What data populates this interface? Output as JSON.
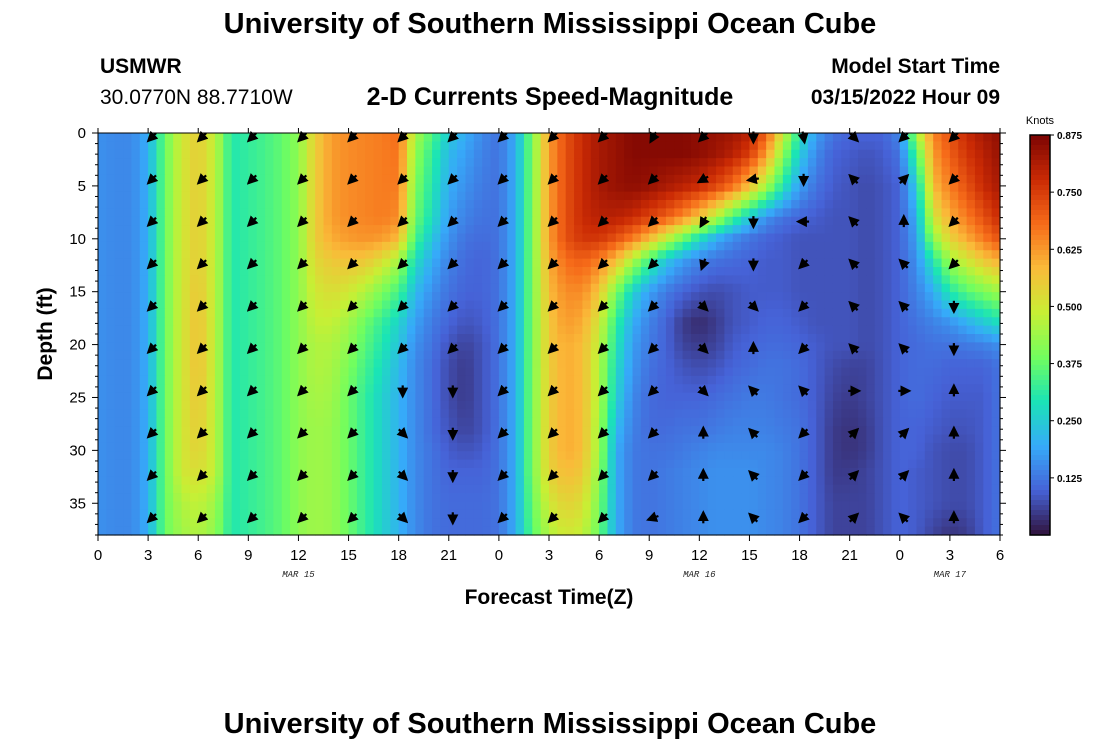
{
  "header": {
    "title": "University of Southern Mississippi Ocean Cube",
    "station": "USMWR",
    "coords": "30.0770N  88.7710W",
    "subtitle": "2-D Currents Speed-Magnitude",
    "model_label": "Model Start Time",
    "model_time": "03/15/2022 Hour 09"
  },
  "footer": {
    "title": "University of Southern Mississippi Ocean Cube"
  },
  "colors": {
    "scale": [
      "#30123b",
      "#4662d7",
      "#36aaf9",
      "#1ae4b6",
      "#72fe5e",
      "#c8ef34",
      "#faba39",
      "#f66b19",
      "#ca2a04",
      "#7a0403"
    ]
  },
  "chart_data": {
    "type": "heatmap",
    "title": "2-D Currents Speed-Magnitude",
    "xlabel": "Forecast Time(Z)",
    "ylabel": "Depth (ft)",
    "x_ticks": [
      "0",
      "3",
      "6",
      "9",
      "12",
      "15",
      "18",
      "21",
      "0",
      "3",
      "6",
      "9",
      "12",
      "15",
      "18",
      "21",
      "0",
      "3",
      "6"
    ],
    "x_range_hours": [
      0,
      54
    ],
    "date_labels": [
      {
        "text": "MAR 15",
        "hour": 12
      },
      {
        "text": "MAR 16",
        "hour": 36
      },
      {
        "text": "MAR 17",
        "hour": 51
      }
    ],
    "y_ticks": [
      0,
      5,
      10,
      15,
      20,
      25,
      30,
      35
    ],
    "ylim": [
      0,
      38
    ],
    "y_inverted": true,
    "colorbar": {
      "title": "Knots",
      "ticks": [
        "0.875",
        "0.750",
        "0.625",
        "0.500",
        "0.375",
        "0.250",
        "0.125"
      ],
      "range": [
        0,
        0.875
      ]
    },
    "speed_profile": {
      "hours": [
        0,
        1,
        2,
        3,
        4,
        5,
        6,
        7,
        8,
        9,
        10,
        11,
        12,
        13,
        14,
        15,
        16,
        17,
        18,
        19,
        20,
        21,
        22,
        23,
        24,
        25,
        26,
        27,
        28,
        29,
        30,
        31,
        32,
        33,
        34,
        35,
        36,
        37,
        38,
        39,
        40,
        41,
        42,
        43,
        44,
        45,
        46,
        47,
        48,
        49,
        50,
        51,
        52,
        53,
        54
      ],
      "depths_ft": [
        0,
        2,
        5,
        8,
        10,
        12,
        15,
        18,
        20,
        22,
        25,
        28,
        30,
        32,
        35,
        38
      ],
      "knots": [
        [
          0.16,
          0.15,
          0.15,
          0.2,
          0.38,
          0.5,
          0.55,
          0.48,
          0.3,
          0.32,
          0.34,
          0.37,
          0.42,
          0.55,
          0.62,
          0.64,
          0.65,
          0.66,
          0.68,
          0.45,
          0.35,
          0.25,
          0.2,
          0.15,
          0.12,
          0.2,
          0.4,
          0.62,
          0.72,
          0.78,
          0.82,
          0.84,
          0.86,
          0.86,
          0.86,
          0.86,
          0.85,
          0.84,
          0.83,
          0.8,
          0.7,
          0.5,
          0.3,
          0.18,
          0.12,
          0.1,
          0.1,
          0.1,
          0.15,
          0.45,
          0.65,
          0.72,
          0.78,
          0.82,
          0.85
        ],
        [
          0.16,
          0.15,
          0.15,
          0.2,
          0.38,
          0.5,
          0.55,
          0.48,
          0.3,
          0.32,
          0.34,
          0.37,
          0.42,
          0.55,
          0.62,
          0.64,
          0.65,
          0.66,
          0.67,
          0.42,
          0.32,
          0.22,
          0.18,
          0.14,
          0.12,
          0.2,
          0.4,
          0.62,
          0.72,
          0.78,
          0.82,
          0.84,
          0.86,
          0.86,
          0.86,
          0.86,
          0.85,
          0.83,
          0.8,
          0.75,
          0.62,
          0.42,
          0.25,
          0.15,
          0.1,
          0.09,
          0.08,
          0.09,
          0.12,
          0.35,
          0.62,
          0.7,
          0.76,
          0.8,
          0.84
        ],
        [
          0.16,
          0.15,
          0.15,
          0.2,
          0.38,
          0.5,
          0.55,
          0.48,
          0.3,
          0.32,
          0.34,
          0.37,
          0.42,
          0.55,
          0.62,
          0.64,
          0.65,
          0.66,
          0.66,
          0.4,
          0.3,
          0.2,
          0.16,
          0.13,
          0.12,
          0.2,
          0.4,
          0.62,
          0.72,
          0.78,
          0.82,
          0.84,
          0.85,
          0.84,
          0.82,
          0.8,
          0.78,
          0.74,
          0.68,
          0.58,
          0.45,
          0.3,
          0.18,
          0.12,
          0.09,
          0.08,
          0.07,
          0.08,
          0.1,
          0.25,
          0.58,
          0.66,
          0.72,
          0.78,
          0.82
        ],
        [
          0.16,
          0.15,
          0.15,
          0.2,
          0.38,
          0.5,
          0.55,
          0.48,
          0.3,
          0.32,
          0.34,
          0.37,
          0.42,
          0.55,
          0.62,
          0.64,
          0.65,
          0.66,
          0.64,
          0.38,
          0.28,
          0.18,
          0.14,
          0.12,
          0.12,
          0.2,
          0.4,
          0.62,
          0.72,
          0.78,
          0.8,
          0.8,
          0.78,
          0.74,
          0.7,
          0.64,
          0.56,
          0.46,
          0.34,
          0.24,
          0.16,
          0.12,
          0.1,
          0.09,
          0.08,
          0.08,
          0.07,
          0.08,
          0.1,
          0.2,
          0.5,
          0.6,
          0.66,
          0.72,
          0.78
        ],
        [
          0.16,
          0.15,
          0.15,
          0.2,
          0.38,
          0.5,
          0.55,
          0.48,
          0.3,
          0.32,
          0.34,
          0.37,
          0.42,
          0.55,
          0.6,
          0.62,
          0.63,
          0.62,
          0.58,
          0.34,
          0.24,
          0.16,
          0.12,
          0.11,
          0.12,
          0.2,
          0.4,
          0.62,
          0.72,
          0.76,
          0.76,
          0.72,
          0.66,
          0.58,
          0.48,
          0.38,
          0.28,
          0.2,
          0.15,
          0.12,
          0.1,
          0.09,
          0.08,
          0.08,
          0.08,
          0.08,
          0.07,
          0.08,
          0.1,
          0.18,
          0.42,
          0.54,
          0.6,
          0.66,
          0.72
        ],
        [
          0.16,
          0.15,
          0.15,
          0.2,
          0.38,
          0.5,
          0.55,
          0.48,
          0.3,
          0.32,
          0.34,
          0.37,
          0.42,
          0.53,
          0.56,
          0.57,
          0.56,
          0.52,
          0.45,
          0.28,
          0.2,
          0.14,
          0.11,
          0.1,
          0.12,
          0.2,
          0.4,
          0.6,
          0.68,
          0.7,
          0.66,
          0.58,
          0.46,
          0.34,
          0.24,
          0.18,
          0.14,
          0.12,
          0.11,
          0.1,
          0.09,
          0.09,
          0.08,
          0.08,
          0.08,
          0.08,
          0.07,
          0.08,
          0.1,
          0.16,
          0.3,
          0.44,
          0.5,
          0.56,
          0.6
        ],
        [
          0.16,
          0.15,
          0.15,
          0.2,
          0.38,
          0.5,
          0.56,
          0.48,
          0.3,
          0.32,
          0.34,
          0.37,
          0.42,
          0.5,
          0.52,
          0.5,
          0.46,
          0.4,
          0.34,
          0.22,
          0.16,
          0.12,
          0.1,
          0.1,
          0.12,
          0.2,
          0.4,
          0.58,
          0.64,
          0.64,
          0.56,
          0.4,
          0.26,
          0.18,
          0.13,
          0.1,
          0.08,
          0.07,
          0.08,
          0.09,
          0.09,
          0.09,
          0.08,
          0.08,
          0.08,
          0.08,
          0.07,
          0.08,
          0.1,
          0.14,
          0.2,
          0.3,
          0.36,
          0.4,
          0.44
        ],
        [
          0.16,
          0.15,
          0.15,
          0.2,
          0.38,
          0.5,
          0.57,
          0.48,
          0.3,
          0.32,
          0.34,
          0.37,
          0.42,
          0.48,
          0.48,
          0.44,
          0.38,
          0.32,
          0.26,
          0.18,
          0.13,
          0.1,
          0.08,
          0.09,
          0.12,
          0.2,
          0.4,
          0.56,
          0.62,
          0.6,
          0.5,
          0.32,
          0.2,
          0.14,
          0.1,
          0.05,
          0.03,
          0.05,
          0.08,
          0.09,
          0.1,
          0.1,
          0.09,
          0.08,
          0.08,
          0.08,
          0.07,
          0.08,
          0.1,
          0.12,
          0.14,
          0.16,
          0.2,
          0.24,
          0.28
        ],
        [
          0.16,
          0.15,
          0.15,
          0.2,
          0.38,
          0.5,
          0.57,
          0.48,
          0.3,
          0.32,
          0.34,
          0.37,
          0.42,
          0.46,
          0.46,
          0.42,
          0.36,
          0.3,
          0.24,
          0.16,
          0.12,
          0.08,
          0.06,
          0.08,
          0.12,
          0.2,
          0.4,
          0.56,
          0.6,
          0.58,
          0.48,
          0.3,
          0.18,
          0.13,
          0.1,
          0.06,
          0.05,
          0.06,
          0.09,
          0.1,
          0.11,
          0.11,
          0.1,
          0.09,
          0.08,
          0.08,
          0.07,
          0.08,
          0.1,
          0.11,
          0.12,
          0.12,
          0.13,
          0.14,
          0.16
        ],
        [
          0.16,
          0.15,
          0.15,
          0.2,
          0.38,
          0.5,
          0.57,
          0.48,
          0.3,
          0.32,
          0.34,
          0.37,
          0.42,
          0.46,
          0.45,
          0.4,
          0.34,
          0.28,
          0.22,
          0.15,
          0.11,
          0.07,
          0.05,
          0.08,
          0.12,
          0.2,
          0.4,
          0.55,
          0.6,
          0.58,
          0.46,
          0.28,
          0.17,
          0.12,
          0.1,
          0.08,
          0.07,
          0.08,
          0.1,
          0.11,
          0.12,
          0.12,
          0.11,
          0.09,
          0.07,
          0.06,
          0.06,
          0.08,
          0.1,
          0.11,
          0.11,
          0.1,
          0.1,
          0.1,
          0.12
        ],
        [
          0.16,
          0.15,
          0.15,
          0.2,
          0.38,
          0.5,
          0.56,
          0.48,
          0.3,
          0.32,
          0.34,
          0.37,
          0.42,
          0.45,
          0.44,
          0.38,
          0.32,
          0.26,
          0.21,
          0.15,
          0.11,
          0.07,
          0.05,
          0.08,
          0.12,
          0.2,
          0.4,
          0.55,
          0.6,
          0.58,
          0.46,
          0.26,
          0.15,
          0.11,
          0.1,
          0.1,
          0.1,
          0.11,
          0.12,
          0.13,
          0.13,
          0.12,
          0.11,
          0.09,
          0.06,
          0.05,
          0.06,
          0.08,
          0.1,
          0.11,
          0.1,
          0.09,
          0.09,
          0.09,
          0.12
        ],
        [
          0.16,
          0.15,
          0.15,
          0.2,
          0.38,
          0.5,
          0.55,
          0.48,
          0.3,
          0.32,
          0.34,
          0.37,
          0.42,
          0.44,
          0.43,
          0.38,
          0.32,
          0.26,
          0.21,
          0.15,
          0.11,
          0.08,
          0.06,
          0.08,
          0.12,
          0.2,
          0.4,
          0.55,
          0.6,
          0.58,
          0.44,
          0.22,
          0.14,
          0.11,
          0.11,
          0.12,
          0.12,
          0.13,
          0.14,
          0.14,
          0.14,
          0.13,
          0.12,
          0.09,
          0.05,
          0.04,
          0.05,
          0.08,
          0.1,
          0.1,
          0.09,
          0.08,
          0.08,
          0.09,
          0.12
        ],
        [
          0.16,
          0.15,
          0.15,
          0.2,
          0.38,
          0.5,
          0.54,
          0.48,
          0.3,
          0.32,
          0.34,
          0.37,
          0.42,
          0.44,
          0.43,
          0.38,
          0.32,
          0.26,
          0.21,
          0.15,
          0.12,
          0.09,
          0.08,
          0.09,
          0.12,
          0.2,
          0.4,
          0.55,
          0.6,
          0.58,
          0.44,
          0.2,
          0.13,
          0.12,
          0.12,
          0.13,
          0.14,
          0.15,
          0.15,
          0.15,
          0.15,
          0.14,
          0.12,
          0.09,
          0.05,
          0.04,
          0.05,
          0.08,
          0.1,
          0.1,
          0.08,
          0.07,
          0.07,
          0.09,
          0.12
        ],
        [
          0.16,
          0.15,
          0.15,
          0.2,
          0.38,
          0.5,
          0.52,
          0.48,
          0.3,
          0.32,
          0.34,
          0.37,
          0.42,
          0.44,
          0.43,
          0.38,
          0.32,
          0.26,
          0.21,
          0.15,
          0.12,
          0.1,
          0.1,
          0.1,
          0.12,
          0.2,
          0.4,
          0.54,
          0.58,
          0.56,
          0.42,
          0.2,
          0.13,
          0.12,
          0.13,
          0.14,
          0.15,
          0.16,
          0.16,
          0.16,
          0.15,
          0.14,
          0.12,
          0.09,
          0.05,
          0.05,
          0.06,
          0.08,
          0.1,
          0.09,
          0.08,
          0.07,
          0.07,
          0.09,
          0.12
        ],
        [
          0.16,
          0.15,
          0.15,
          0.2,
          0.38,
          0.46,
          0.48,
          0.44,
          0.3,
          0.32,
          0.34,
          0.37,
          0.42,
          0.44,
          0.43,
          0.38,
          0.32,
          0.26,
          0.21,
          0.15,
          0.12,
          0.11,
          0.11,
          0.11,
          0.12,
          0.2,
          0.38,
          0.5,
          0.54,
          0.52,
          0.4,
          0.2,
          0.13,
          0.12,
          0.13,
          0.14,
          0.15,
          0.16,
          0.16,
          0.16,
          0.15,
          0.14,
          0.12,
          0.09,
          0.06,
          0.06,
          0.06,
          0.08,
          0.1,
          0.09,
          0.08,
          0.07,
          0.07,
          0.09,
          0.12
        ],
        [
          0.16,
          0.15,
          0.15,
          0.2,
          0.38,
          0.44,
          0.46,
          0.42,
          0.3,
          0.32,
          0.34,
          0.37,
          0.42,
          0.44,
          0.43,
          0.38,
          0.32,
          0.26,
          0.21,
          0.15,
          0.12,
          0.11,
          0.11,
          0.11,
          0.12,
          0.2,
          0.36,
          0.46,
          0.5,
          0.48,
          0.38,
          0.2,
          0.13,
          0.12,
          0.13,
          0.14,
          0.15,
          0.16,
          0.16,
          0.16,
          0.15,
          0.14,
          0.12,
          0.09,
          0.06,
          0.06,
          0.06,
          0.08,
          0.1,
          0.09,
          0.06,
          0.04,
          0.05,
          0.09,
          0.12
        ]
      ]
    },
    "vector_hours": [
      3,
      6,
      9,
      12,
      15,
      18,
      21,
      24,
      27,
      30,
      33,
      36,
      39,
      42,
      45,
      48,
      51
    ],
    "vector_depths_ft": [
      0,
      4,
      8,
      12,
      16,
      20,
      24,
      28,
      32,
      36
    ],
    "vector_dirs_deg": [
      [
        225,
        225,
        225,
        225,
        225,
        225,
        225,
        225,
        225,
        225,
        210,
        225,
        180,
        170,
        135,
        225,
        225
      ],
      [
        225,
        225,
        225,
        225,
        225,
        225,
        225,
        225,
        225,
        225,
        225,
        240,
        260,
        180,
        315,
        45,
        225
      ],
      [
        225,
        225,
        225,
        225,
        225,
        225,
        225,
        225,
        225,
        225,
        225,
        210,
        180,
        270,
        315,
        0,
        225
      ],
      [
        225,
        225,
        225,
        225,
        225,
        225,
        225,
        225,
        225,
        225,
        225,
        200,
        180,
        225,
        315,
        315,
        225
      ],
      [
        225,
        225,
        225,
        225,
        225,
        225,
        225,
        225,
        225,
        225,
        225,
        135,
        135,
        225,
        315,
        315,
        180
      ],
      [
        225,
        225,
        225,
        225,
        225,
        225,
        225,
        225,
        225,
        225,
        225,
        135,
        0,
        225,
        315,
        315,
        180
      ],
      [
        225,
        225,
        225,
        225,
        225,
        180,
        180,
        225,
        225,
        225,
        225,
        135,
        315,
        315,
        90,
        90,
        0
      ],
      [
        225,
        225,
        225,
        225,
        225,
        135,
        180,
        225,
        225,
        225,
        225,
        0,
        315,
        225,
        45,
        45,
        0
      ],
      [
        225,
        225,
        225,
        225,
        225,
        135,
        180,
        225,
        225,
        225,
        225,
        0,
        315,
        225,
        45,
        45,
        0
      ],
      [
        225,
        225,
        225,
        225,
        225,
        135,
        180,
        225,
        225,
        225,
        250,
        0,
        315,
        225,
        45,
        315,
        0
      ]
    ]
  }
}
